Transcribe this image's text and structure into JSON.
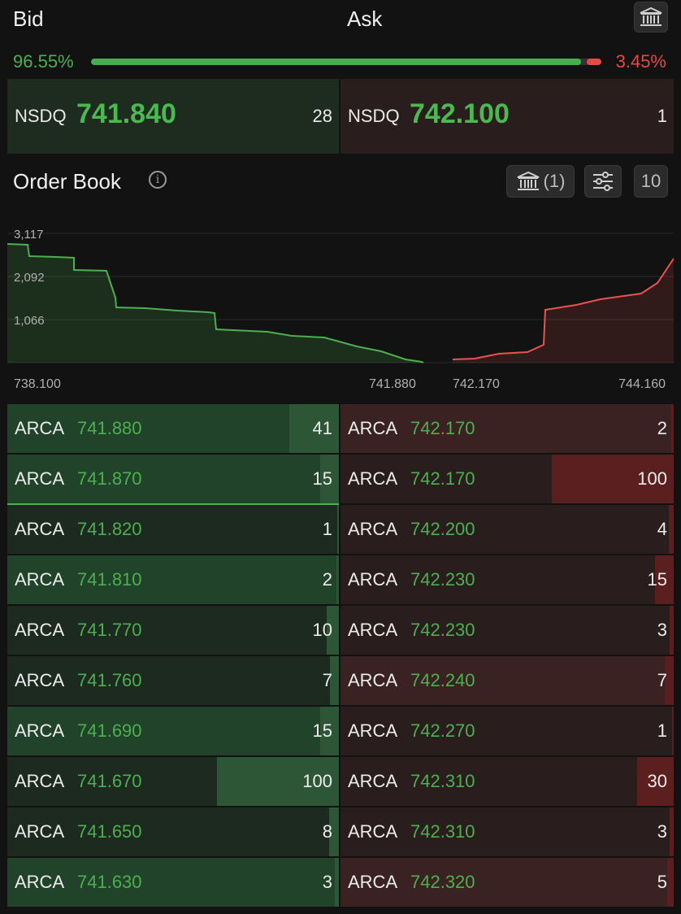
{
  "header": {
    "bid_label": "Bid",
    "ask_label": "Ask"
  },
  "ratio": {
    "bid_pct": "96.55%",
    "ask_pct": "3.45%",
    "bid_fraction": 0.9655
  },
  "top_quote": {
    "bid": {
      "exchange": "NSDQ",
      "price": "741.840",
      "size": "28"
    },
    "ask": {
      "exchange": "NSDQ",
      "price": "742.100",
      "size": "1"
    }
  },
  "order_book": {
    "title": "Order Book",
    "exchange_filter_count": "(1)",
    "depth": "10"
  },
  "depth_chart": {
    "y_ticks": [
      "3,117",
      "2,092",
      "1,066"
    ],
    "x_ticks": [
      "738.100",
      "741.880",
      "742.170",
      "744.160"
    ],
    "colors": {
      "bid": "#4caf50",
      "ask": "#e9534f"
    }
  },
  "bids": [
    {
      "exchange": "ARCA",
      "price": "741.880",
      "size": "41"
    },
    {
      "exchange": "ARCA",
      "price": "741.870",
      "size": "15"
    },
    {
      "exchange": "ARCA",
      "price": "741.820",
      "size": "1"
    },
    {
      "exchange": "ARCA",
      "price": "741.810",
      "size": "2"
    },
    {
      "exchange": "ARCA",
      "price": "741.770",
      "size": "10"
    },
    {
      "exchange": "ARCA",
      "price": "741.760",
      "size": "7"
    },
    {
      "exchange": "ARCA",
      "price": "741.690",
      "size": "15"
    },
    {
      "exchange": "ARCA",
      "price": "741.670",
      "size": "100"
    },
    {
      "exchange": "ARCA",
      "price": "741.650",
      "size": "8"
    },
    {
      "exchange": "ARCA",
      "price": "741.630",
      "size": "3"
    }
  ],
  "asks": [
    {
      "exchange": "ARCA",
      "price": "742.170",
      "size": "2"
    },
    {
      "exchange": "ARCA",
      "price": "742.170",
      "size": "100"
    },
    {
      "exchange": "ARCA",
      "price": "742.200",
      "size": "4"
    },
    {
      "exchange": "ARCA",
      "price": "742.230",
      "size": "15"
    },
    {
      "exchange": "ARCA",
      "price": "742.230",
      "size": "3"
    },
    {
      "exchange": "ARCA",
      "price": "742.240",
      "size": "7"
    },
    {
      "exchange": "ARCA",
      "price": "742.270",
      "size": "1"
    },
    {
      "exchange": "ARCA",
      "price": "742.310",
      "size": "30"
    },
    {
      "exchange": "ARCA",
      "price": "742.310",
      "size": "3"
    },
    {
      "exchange": "ARCA",
      "price": "742.320",
      "size": "5"
    }
  ],
  "icons": {
    "bank": "bank-icon",
    "info": "info-icon",
    "filter": "sliders-icon"
  }
}
